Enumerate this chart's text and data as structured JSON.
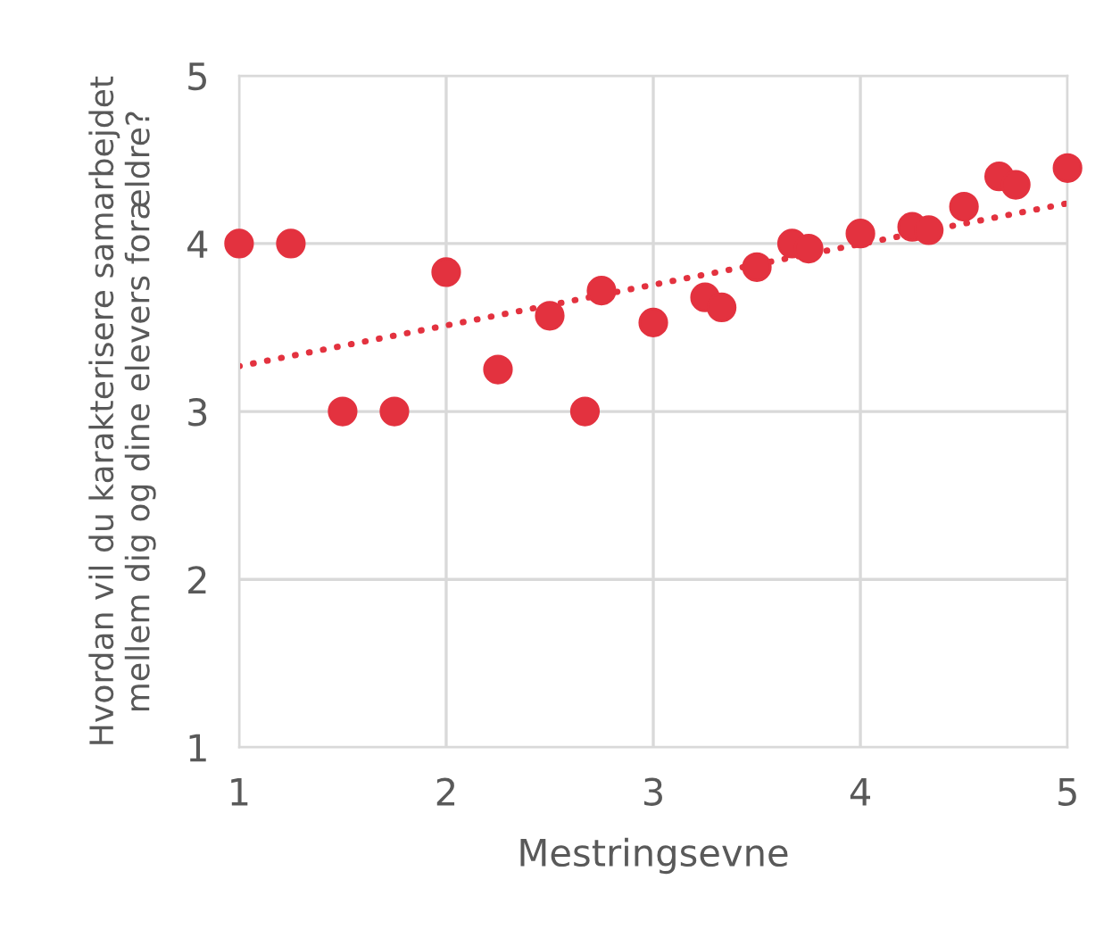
{
  "chart_data": {
    "type": "scatter",
    "xlabel": "Mestringsevne",
    "ylabel": "Hvordan vil du karakterisere samarbejdet\nmellem dig og dine elevers forældre?",
    "xlim": [
      1,
      5
    ],
    "ylim": [
      1,
      5
    ],
    "xticks": [
      1,
      2,
      3,
      4,
      5
    ],
    "yticks": [
      1,
      2,
      3,
      4,
      5
    ],
    "grid": true,
    "series": [
      {
        "color": "#e3323f",
        "marker": "circle",
        "x": [
          1,
          1.25,
          1.5,
          1.75,
          2,
          2.25,
          2.5,
          2.67,
          2.75,
          3,
          3.25,
          3.33,
          3.5,
          3.67,
          3.75,
          4,
          4.25,
          4.33,
          4.5,
          4.67,
          4.75,
          5
        ],
        "values": [
          4,
          4,
          3,
          3,
          3.83,
          3.25,
          3.57,
          3,
          3.72,
          3.53,
          3.68,
          3.62,
          3.86,
          4,
          3.97,
          4.06,
          4.1,
          4.08,
          4.22,
          4.4,
          4.35,
          4.45
        ]
      },
      {
        "type": "line",
        "color": "#e3323f",
        "line_style": "dotted",
        "x": [
          1,
          5
        ],
        "values": [
          3.27,
          4.24
        ]
      }
    ]
  }
}
